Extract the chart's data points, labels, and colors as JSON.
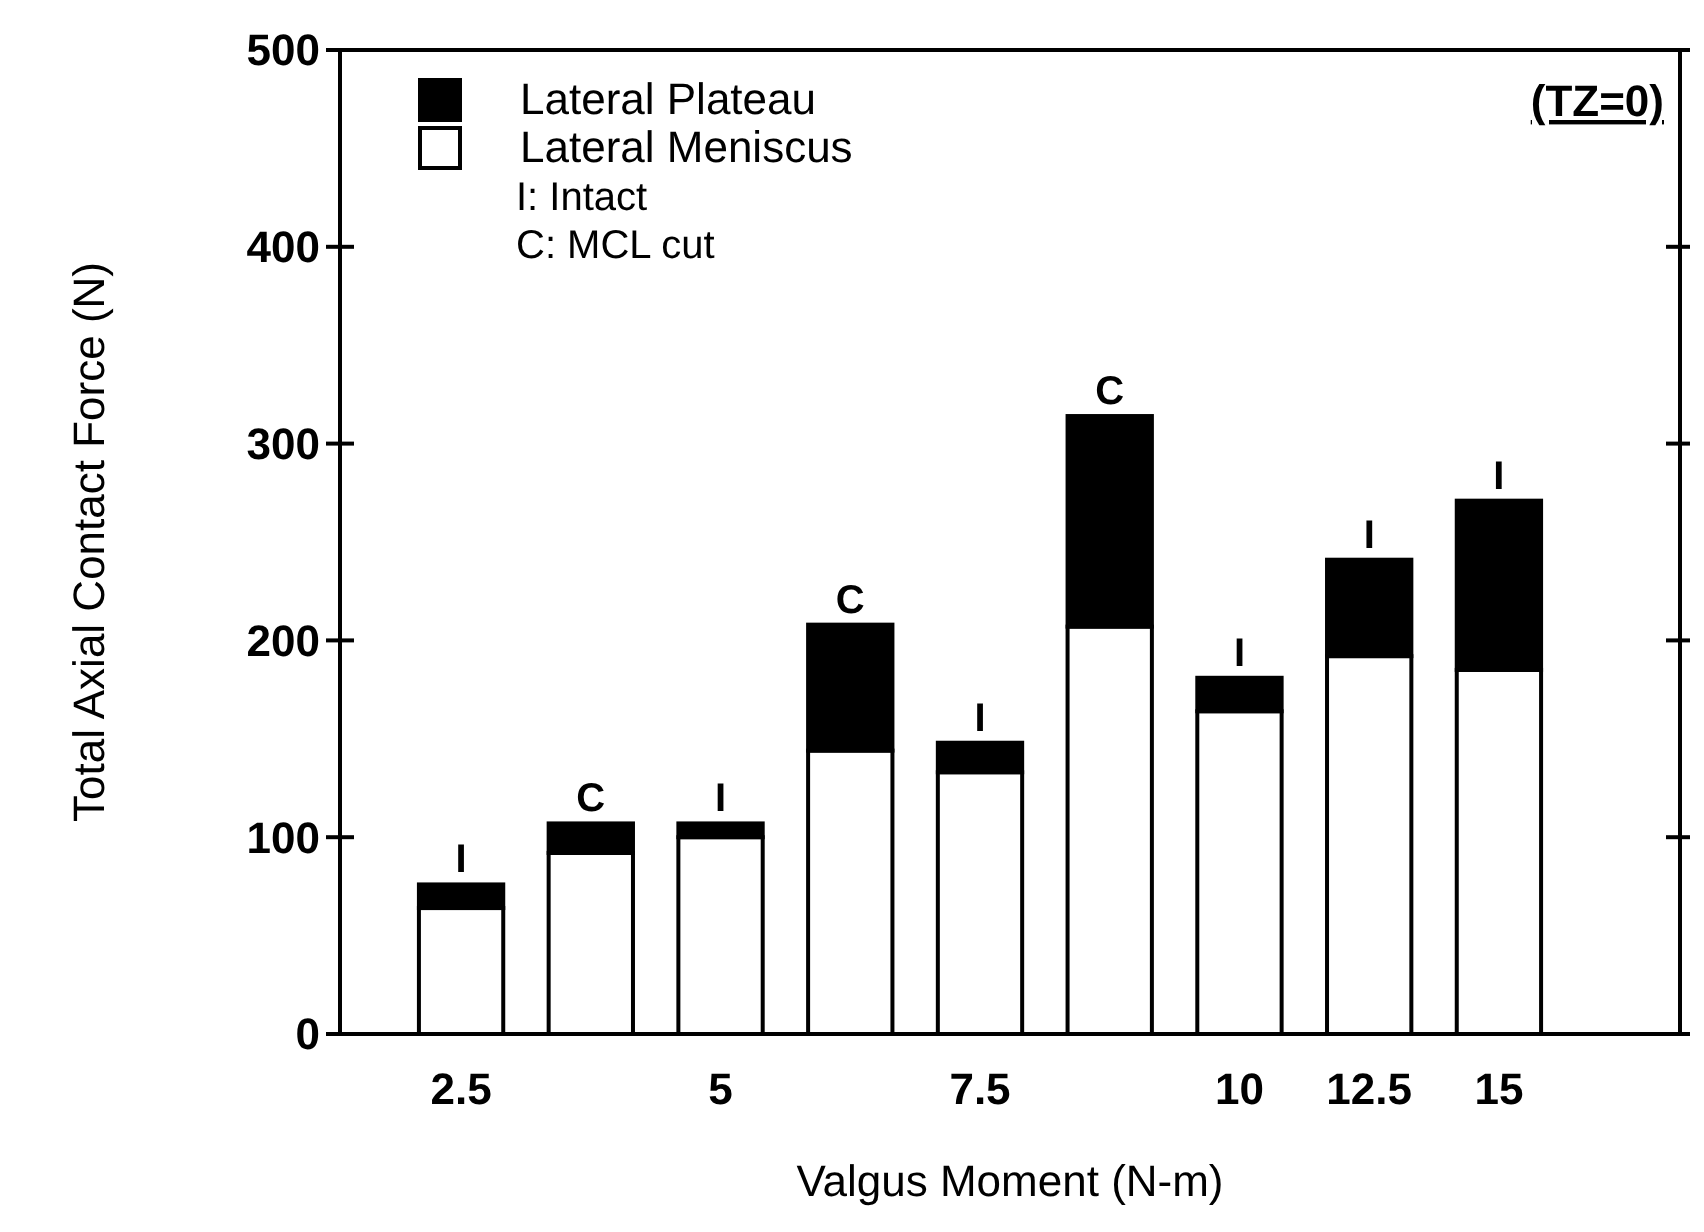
{
  "chart_data": {
    "type": "bar",
    "stacked": true,
    "xlabel": "Valgus Moment (N-m)",
    "ylabel": "Total Axial Contact Force (N)",
    "categories": [
      "2.5",
      null,
      "5",
      null,
      "7.5",
      null,
      "10",
      "12.5",
      "15"
    ],
    "series": [
      {
        "name": "Lateral Meniscus",
        "color": "#ffffff",
        "values": [
          64,
          92,
          100,
          144,
          133,
          207,
          164,
          192,
          185
        ]
      },
      {
        "name": "Lateral Plateau",
        "color": "#000000",
        "values": [
          12,
          15,
          7,
          64,
          15,
          107,
          17,
          49,
          86
        ],
        "value_labels": [
          "I",
          "C",
          "I",
          "C",
          "I",
          "C",
          "I",
          "I",
          "I"
        ]
      }
    ],
    "ylim": [
      0,
      500
    ],
    "yticks": [
      0,
      100,
      200,
      300,
      400,
      500
    ],
    "legend": "top left",
    "annotations": [
      "I:  Intact",
      "C: MCL cut",
      "(TZ=0)"
    ]
  }
}
